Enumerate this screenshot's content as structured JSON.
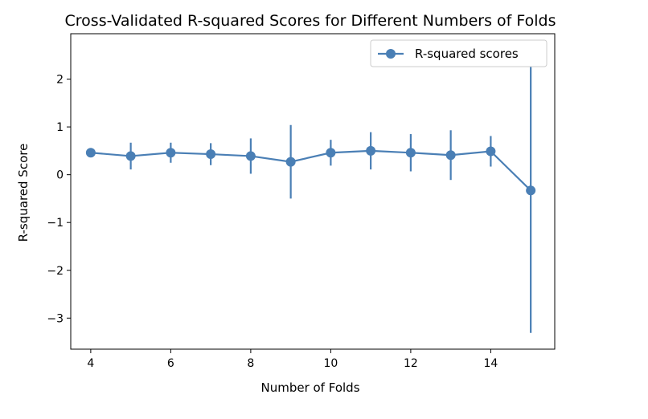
{
  "chart_data": {
    "type": "line",
    "title": "Cross-Validated R-squared Scores for Different Numbers of Folds",
    "xlabel": "Number of Folds",
    "ylabel": "R-squared Score",
    "xlim": [
      3.5,
      15.6
    ],
    "ylim": [
      -3.65,
      2.95
    ],
    "xticks": [
      4,
      6,
      8,
      10,
      12,
      14
    ],
    "yticks": [
      -3,
      -2,
      -1,
      0,
      1,
      2
    ],
    "grid": false,
    "legend_position": "top-right",
    "series": [
      {
        "name": "R-squared scores",
        "color": "#4a7fb5",
        "x": [
          4,
          5,
          6,
          7,
          8,
          9,
          10,
          11,
          12,
          13,
          14,
          15
        ],
        "y": [
          0.46,
          0.39,
          0.46,
          0.43,
          0.39,
          0.27,
          0.46,
          0.5,
          0.46,
          0.41,
          0.49,
          -0.33
        ],
        "yerr": [
          0.08,
          0.28,
          0.21,
          0.23,
          0.37,
          0.77,
          0.27,
          0.39,
          0.39,
          0.52,
          0.32,
          2.98
        ]
      }
    ]
  }
}
